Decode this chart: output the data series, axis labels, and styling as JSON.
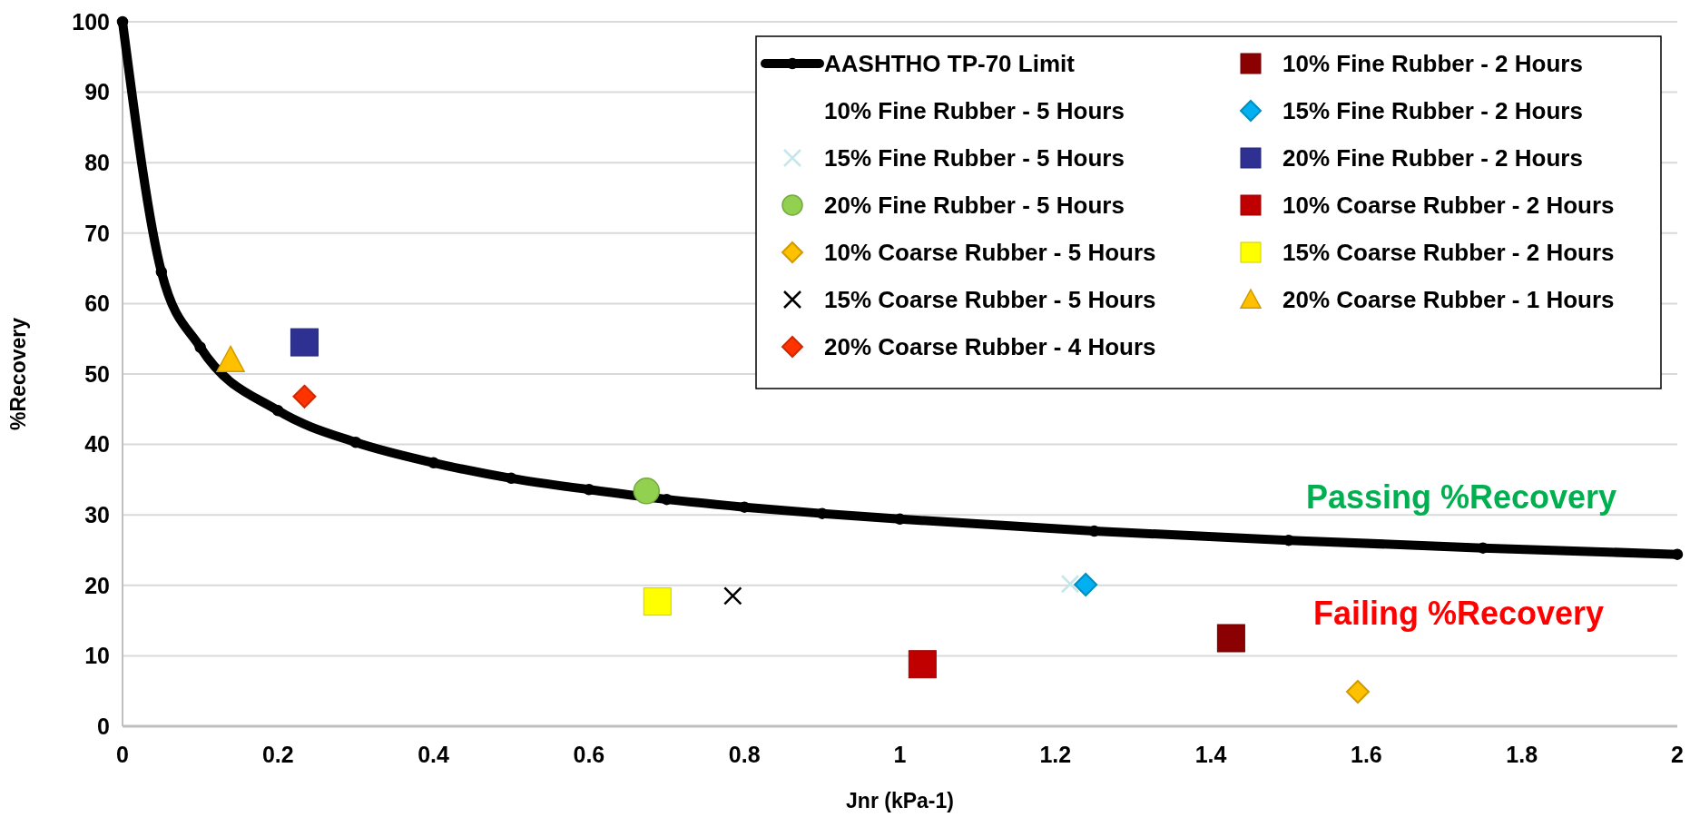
{
  "chart_data": {
    "type": "scatter",
    "xlabel": "Jnr (kPa-1)",
    "ylabel": "%Recovery",
    "xlim": [
      0,
      2
    ],
    "ylim": [
      0,
      100
    ],
    "xticks": [
      0,
      0.2,
      0.4,
      0.6,
      0.8,
      1,
      1.2,
      1.4,
      1.6,
      1.8,
      2
    ],
    "yticks": [
      0,
      10,
      20,
      30,
      40,
      50,
      60,
      70,
      80,
      90,
      100
    ],
    "grid": "y",
    "legend": "top right",
    "annotations": [
      "Passing %Recovery",
      "Failing %Recovery"
    ],
    "series": [
      {
        "name": "AASHTHO TP-70 Limit",
        "type": "line",
        "color": "#000000",
        "marker": "circle",
        "line_style": "solid",
        "x": [
          0,
          0.05,
          0.1,
          0.2,
          0.3,
          0.4,
          0.5,
          0.6,
          0.7,
          0.8,
          0.9,
          1,
          1.25,
          1.5,
          1.75,
          2
        ],
        "values": [
          100,
          64.5,
          53.8,
          44.8,
          40.3,
          37.4,
          35.2,
          33.6,
          32.2,
          31.1,
          30.2,
          29.4,
          27.7,
          26.4,
          25.3,
          24.4
        ]
      },
      {
        "name": "10% Fine Rubber - 2 Hours",
        "color": "#8b0000",
        "marker": "square",
        "x": [
          1.426
        ],
        "values": [
          12.5
        ]
      },
      {
        "name": "10% Fine Rubber - 5 Hours",
        "marker": "none"
      },
      {
        "name": "15% Fine Rubber - 2 Hours",
        "color": "#00b0f0",
        "marker": "diamond",
        "x": [
          1.239
        ],
        "values": [
          20.1
        ]
      },
      {
        "name": "15% Fine Rubber - 5 Hours",
        "color": "#c5e6ea",
        "marker": "cross",
        "x": [
          1.219
        ],
        "values": [
          20.2
        ]
      },
      {
        "name": "20% Fine Rubber - 2 Hours",
        "color": "#2e3192",
        "marker": "square",
        "x": [
          0.234
        ],
        "values": [
          54.5
        ]
      },
      {
        "name": "20% Fine Rubber - 5 Hours",
        "color": "#92d050",
        "marker": "circle",
        "x": [
          0.674
        ],
        "values": [
          33.4
        ]
      },
      {
        "name": "10% Coarse Rubber - 2 Hours",
        "color": "#c00000",
        "marker": "square",
        "x": [
          1.029
        ],
        "values": [
          8.8
        ]
      },
      {
        "name": "10% Coarse Rubber - 5 Hours",
        "color": "#ffc000",
        "marker": "diamond",
        "x": [
          1.589
        ],
        "values": [
          4.9
        ]
      },
      {
        "name": "15% Coarse Rubber - 2 Hours",
        "color": "#ffff00",
        "marker": "square",
        "x": [
          0.688
        ],
        "values": [
          17.7
        ]
      },
      {
        "name": "15% Coarse Rubber - 5 Hours",
        "color": "#000000",
        "marker": "cross",
        "x": [
          0.785
        ],
        "values": [
          18.5
        ]
      },
      {
        "name": "20% Coarse Rubber - 1 Hours",
        "color": "#ffc000",
        "marker": "triangle",
        "x": [
          0.139
        ],
        "values": [
          52
        ]
      },
      {
        "name": "20% Coarse Rubber - 4 Hours",
        "color": "#ff3300",
        "marker": "diamond",
        "x": [
          0.234
        ],
        "values": [
          46.8
        ]
      }
    ]
  }
}
